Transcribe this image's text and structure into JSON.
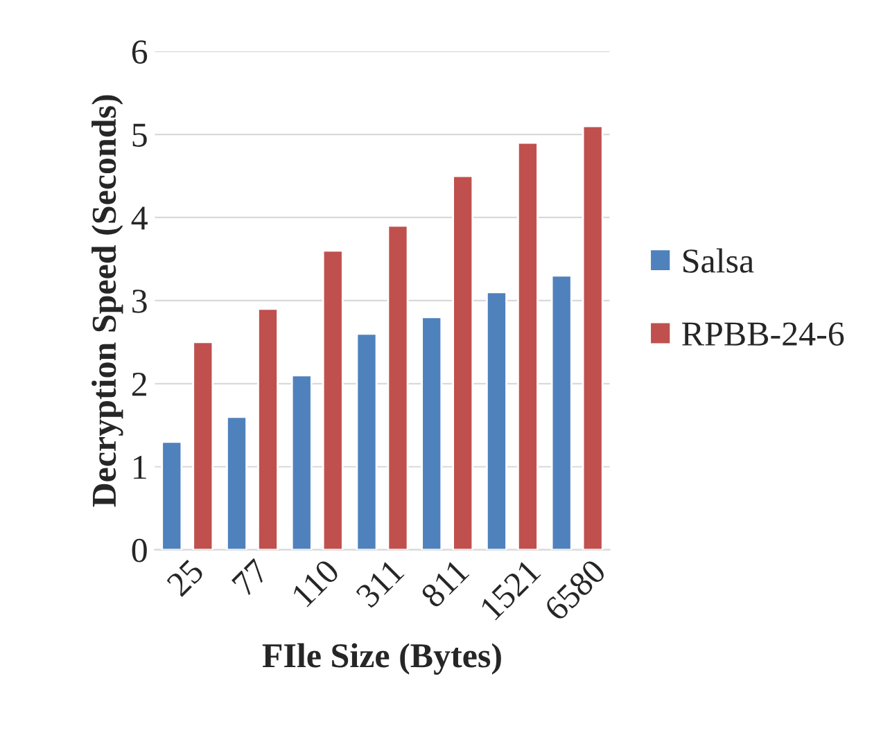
{
  "chart_data": {
    "type": "bar",
    "xlabel": "FIle Size (Bytes)",
    "ylabel": "Decryption Speed (Seconds)",
    "categories": [
      "25",
      "77",
      "110",
      "311",
      "811",
      "1521",
      "6580"
    ],
    "series": [
      {
        "name": "Salsa",
        "color": "#4f81bd",
        "values": [
          1.3,
          1.6,
          2.1,
          2.6,
          2.8,
          3.1,
          3.3
        ]
      },
      {
        "name": "RPBB-24-6",
        "color": "#c0504d",
        "values": [
          2.5,
          2.9,
          3.6,
          3.9,
          4.5,
          4.9,
          5.1
        ]
      }
    ],
    "ylim": [
      0,
      6
    ],
    "yticks": [
      0,
      1,
      2,
      3,
      4,
      5,
      6
    ],
    "grid": "y",
    "legend": "right"
  }
}
